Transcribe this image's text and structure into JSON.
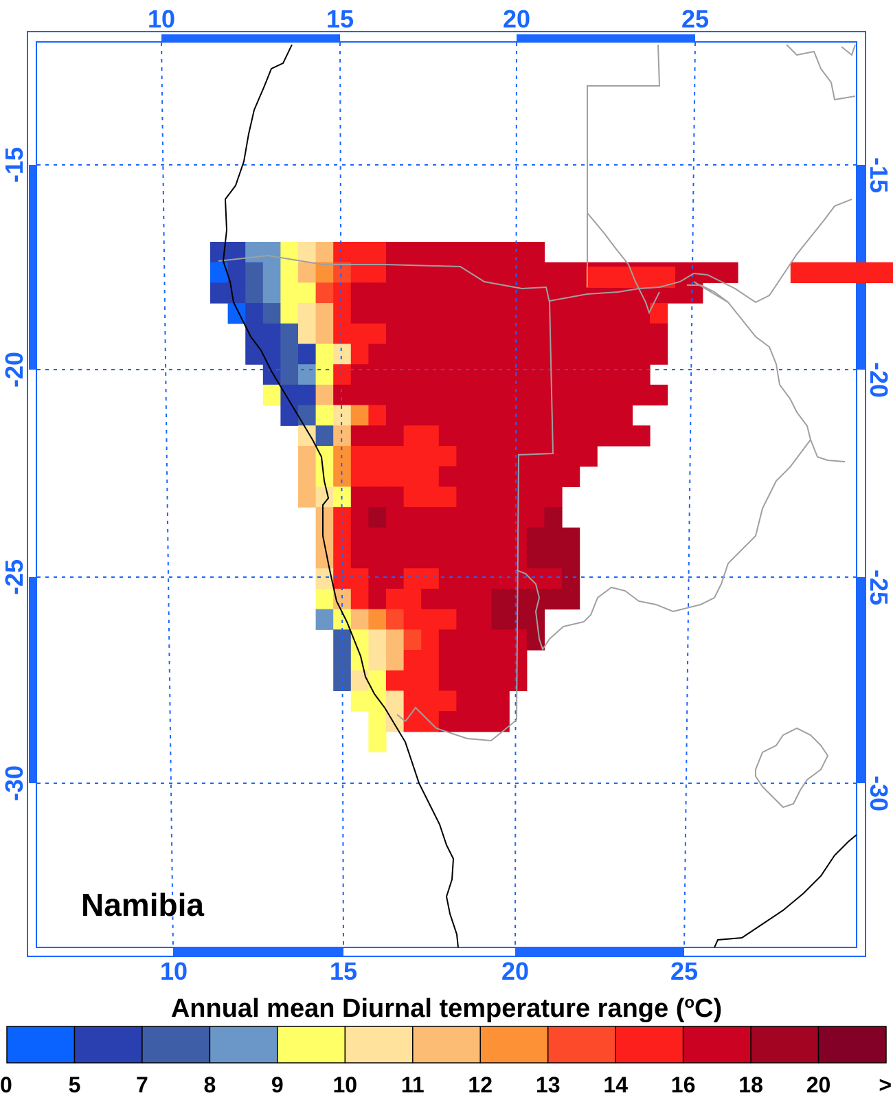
{
  "map": {
    "region_label": "Namibia",
    "title": "Annual mean Diurnal temperature range (",
    "title_sup": "o",
    "title_unit_tail": "C)",
    "lon_ticks_top": [
      "10",
      "15",
      "20",
      "25"
    ],
    "lon_ticks_bottom": [
      "10",
      "15",
      "20",
      "25"
    ],
    "lat_ticks_left": [
      "-15",
      "-20",
      "-25",
      "-30"
    ],
    "lat_ticks_right": [
      "-15",
      "-20",
      "-25",
      "-30"
    ],
    "colors": {
      "axis": "#1a66ff",
      "coastline": "#000000",
      "borders": "#a0a0a0"
    }
  },
  "legend": {
    "labels": [
      "0",
      "5",
      "7",
      "8",
      "9",
      "10",
      "11",
      "12",
      "13",
      "14",
      "16",
      "18",
      "20",
      ">"
    ],
    "colors": [
      "#0b63ff",
      "#2a3fb0",
      "#3e5ea8",
      "#6a97c8",
      "#ffff66",
      "#ffe29b",
      "#fdbc73",
      "#fd9135",
      "#fc4a2a",
      "#fd1f1b",
      "#cb0221",
      "#a30422",
      "#830027"
    ]
  }
}
